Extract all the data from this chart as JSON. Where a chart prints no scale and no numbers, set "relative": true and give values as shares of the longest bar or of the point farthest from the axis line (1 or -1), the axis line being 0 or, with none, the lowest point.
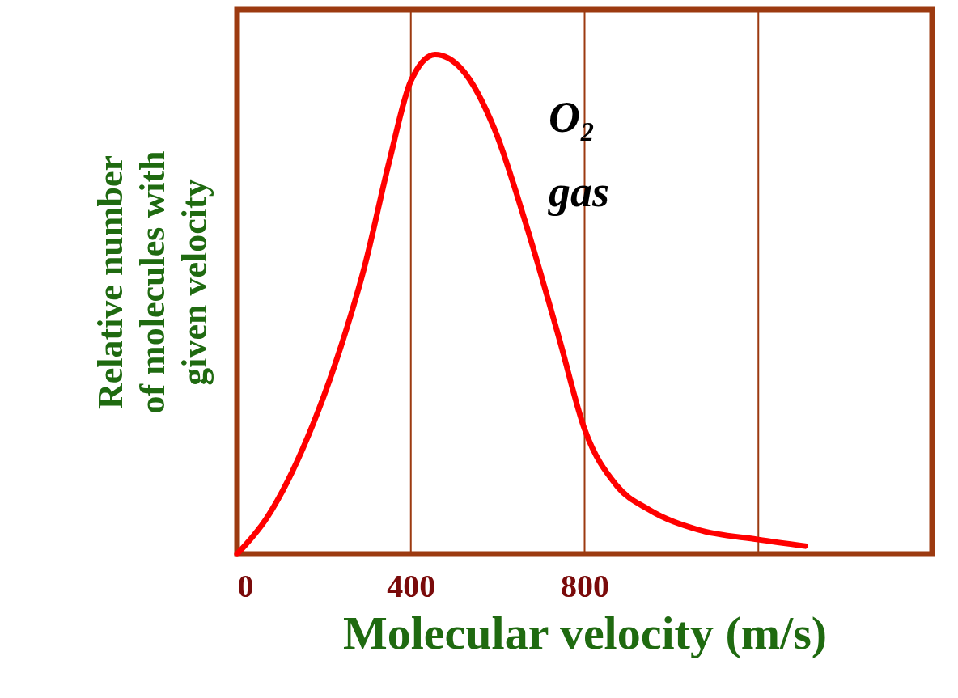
{
  "chart_data": {
    "type": "line",
    "xlabel": "Molecular velocity (m/s)",
    "ylabel": "Relative number of molecules with given velocity",
    "relative": true,
    "xlim": [
      0,
      1600
    ],
    "xticks": [
      0,
      400,
      800,
      {
        "value": 1200,
        "label": null
      }
    ],
    "grid": "x",
    "line_style": "solid",
    "x": [
      0,
      69,
      163,
      237,
      293,
      350,
      400,
      456,
      518,
      593,
      667,
      742,
      800,
      873,
      948,
      1060,
      1200,
      1308
    ],
    "series": [
      {
        "name": "O₂ gas",
        "color": "#ff0000",
        "values": [
          0,
          0.073,
          0.235,
          0.41,
          0.574,
          0.785,
          0.947,
          1,
          0.97,
          0.85,
          0.655,
          0.43,
          0.25,
          0.138,
          0.089,
          0.049,
          0.029,
          0.016
        ]
      }
    ]
  }
}
